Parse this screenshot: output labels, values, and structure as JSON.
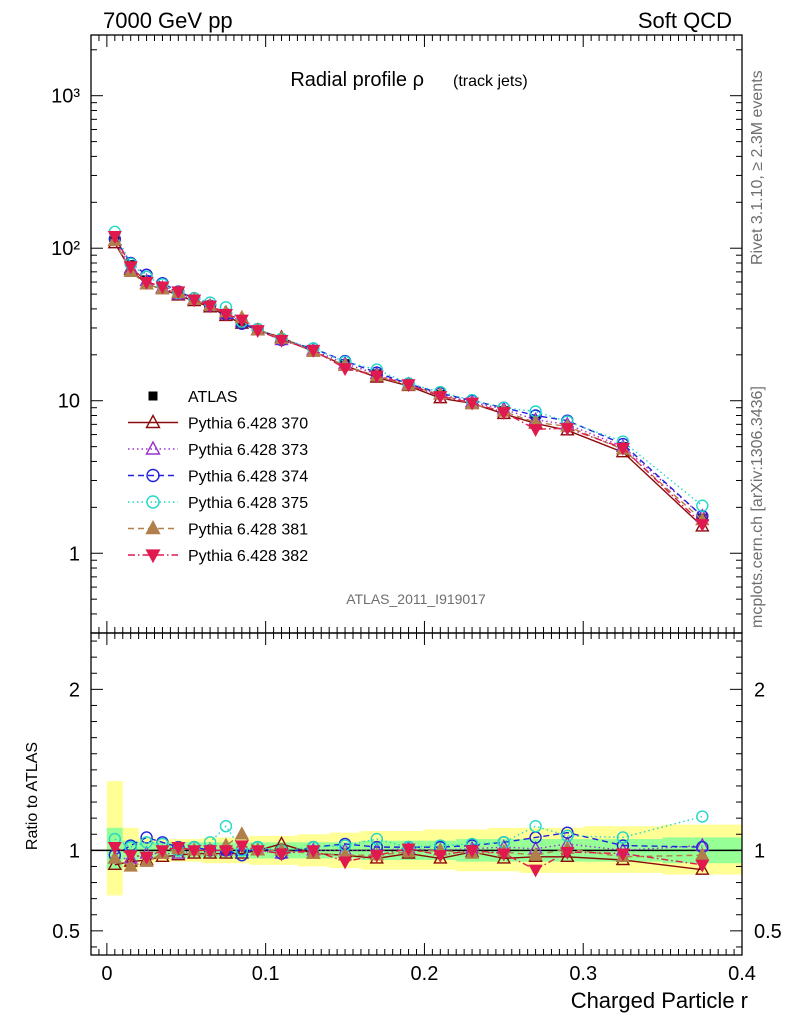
{
  "header": {
    "left": "7000 GeV pp",
    "right": "Soft QCD"
  },
  "side_labels": {
    "rivet": "Rivet 3.1.10, ≥ 2.3M events",
    "mcplots": "mcplots.cern.ch [arXiv:1306.3436]"
  },
  "chart_data": [
    {
      "type": "line",
      "title": "Radial profile ρ",
      "title_suffix": "(track jets)",
      "watermark": "ATLAS_2011_I919017",
      "yscale": "log",
      "xlim": [
        -0.01,
        0.4
      ],
      "ylim": [
        0.3,
        2500
      ],
      "y_tick_labels": [
        "10³",
        "10²",
        "10",
        "1"
      ],
      "x": [
        0.005,
        0.015,
        0.025,
        0.035,
        0.045,
        0.055,
        0.065,
        0.075,
        0.085,
        0.095,
        0.11,
        0.13,
        0.15,
        0.17,
        0.19,
        0.21,
        0.23,
        0.25,
        0.27,
        0.29,
        0.325,
        0.375
      ],
      "legend_position": "middle-left",
      "series": [
        {
          "name": "ATLAS",
          "color": "#000000",
          "marker": "square",
          "dash": "none",
          "values": [
            118,
            78,
            62,
            56,
            51,
            46,
            42,
            37,
            33,
            29,
            25.5,
            21.5,
            17.5,
            15,
            12.7,
            11,
            9.7,
            8.6,
            7.4,
            6.7,
            5.0,
            1.7
          ]
        },
        {
          "name": "Pythia 6.428 370",
          "color": "#8b0a0a",
          "marker": "triangle-open",
          "dash": "solid",
          "values": [
            108,
            72,
            58,
            54,
            49,
            45,
            41,
            36,
            32,
            29,
            26,
            21,
            17,
            14.2,
            12.5,
            10.4,
            9.6,
            8.2,
            7.1,
            6.4,
            4.6,
            1.5
          ]
        },
        {
          "name": "Pythia 6.428 373",
          "color": "#9b30d0",
          "marker": "triangle-open",
          "dash": "dotted",
          "values": [
            112,
            74,
            61,
            55,
            50,
            46,
            42,
            37,
            33,
            29,
            25,
            21.5,
            17.5,
            15,
            12.8,
            11,
            9.8,
            8.8,
            7.5,
            7.0,
            5.0,
            1.75
          ]
        },
        {
          "name": "Pythia 6.428 374",
          "color": "#2222dd",
          "marker": "circle-open",
          "dash": "dashed",
          "values": [
            115,
            80,
            67,
            59,
            52,
            47,
            42,
            37,
            32,
            29.5,
            25,
            22,
            18.2,
            15.3,
            12.9,
            11.2,
            10,
            9.0,
            8.0,
            7.4,
            5.2,
            1.75
          ]
        },
        {
          "name": "Pythia 6.428 375",
          "color": "#20d8c8",
          "marker": "circle-open",
          "dash": "dotted",
          "values": [
            128,
            79,
            65,
            58,
            51,
            47,
            44,
            41,
            33,
            29.5,
            25.5,
            22,
            18,
            16,
            13,
            11.4,
            10.1,
            9.0,
            8.5,
            7.3,
            5.4,
            2.05
          ]
        },
        {
          "name": "Pythia 6.428 381",
          "color": "#b07f4a",
          "marker": "triangle-filled",
          "dash": "dashed",
          "values": [
            112,
            70,
            58,
            54,
            51,
            46,
            42,
            38,
            35,
            29,
            25.5,
            21,
            17,
            14.5,
            12.6,
            11,
            9.5,
            8.5,
            7.2,
            6.8,
            4.8,
            1.65
          ]
        },
        {
          "name": "Pythia 6.428 382",
          "color": "#e0194f",
          "marker": "triangle-down-filled",
          "dash": "dashdot",
          "values": [
            120,
            76,
            60,
            56,
            52,
            46,
            42,
            37,
            34,
            29,
            25,
            21.5,
            16.3,
            14.6,
            12.8,
            10.7,
            9.7,
            8.4,
            6.5,
            6.6,
            4.9,
            1.55
          ]
        }
      ]
    },
    {
      "type": "line",
      "ylabel": "Ratio to ATLAS",
      "xlabel": "Charged Particle r",
      "xlim": [
        -0.01,
        0.4
      ],
      "ylim": [
        0.35,
        2.35
      ],
      "x_tick_labels": [
        "0",
        "0.1",
        "0.2",
        "0.3",
        "0.4"
      ],
      "y_tick_labels": [
        "2",
        "1",
        "0.5"
      ],
      "bands_outer_colour": "#ffff96",
      "bands_inner_colour": "#96ff96",
      "bins": [
        [
          0.0,
          0.01
        ],
        [
          0.01,
          0.02
        ],
        [
          0.02,
          0.03
        ],
        [
          0.03,
          0.04
        ],
        [
          0.04,
          0.05
        ],
        [
          0.05,
          0.06
        ],
        [
          0.06,
          0.07
        ],
        [
          0.07,
          0.08
        ],
        [
          0.08,
          0.09
        ],
        [
          0.09,
          0.1
        ],
        [
          0.1,
          0.12
        ],
        [
          0.12,
          0.14
        ],
        [
          0.14,
          0.16
        ],
        [
          0.16,
          0.18
        ],
        [
          0.18,
          0.2
        ],
        [
          0.2,
          0.22
        ],
        [
          0.22,
          0.24
        ],
        [
          0.24,
          0.26
        ],
        [
          0.26,
          0.28
        ],
        [
          0.28,
          0.3
        ],
        [
          0.3,
          0.35
        ],
        [
          0.35,
          0.4
        ]
      ],
      "band_inner": [
        [
          0.88,
          1.14
        ],
        [
          0.94,
          1.06
        ],
        [
          0.95,
          1.05
        ],
        [
          0.95,
          1.05
        ],
        [
          0.95,
          1.05
        ],
        [
          0.95,
          1.05
        ],
        [
          0.95,
          1.05
        ],
        [
          0.95,
          1.05
        ],
        [
          0.95,
          1.05
        ],
        [
          0.95,
          1.05
        ],
        [
          0.95,
          1.05
        ],
        [
          0.95,
          1.05
        ],
        [
          0.95,
          1.05
        ],
        [
          0.94,
          1.06
        ],
        [
          0.94,
          1.06
        ],
        [
          0.94,
          1.06
        ],
        [
          0.93,
          1.07
        ],
        [
          0.93,
          1.07
        ],
        [
          0.93,
          1.07
        ],
        [
          0.93,
          1.07
        ],
        [
          0.93,
          1.07
        ],
        [
          0.92,
          1.08
        ]
      ],
      "band_outer": [
        [
          0.72,
          1.43
        ],
        [
          0.88,
          1.14
        ],
        [
          0.92,
          1.08
        ],
        [
          0.93,
          1.07
        ],
        [
          0.93,
          1.07
        ],
        [
          0.93,
          1.07
        ],
        [
          0.92,
          1.08
        ],
        [
          0.92,
          1.08
        ],
        [
          0.92,
          1.08
        ],
        [
          0.91,
          1.09
        ],
        [
          0.91,
          1.09
        ],
        [
          0.9,
          1.1
        ],
        [
          0.89,
          1.11
        ],
        [
          0.88,
          1.12
        ],
        [
          0.88,
          1.12
        ],
        [
          0.88,
          1.13
        ],
        [
          0.87,
          1.13
        ],
        [
          0.87,
          1.14
        ],
        [
          0.86,
          1.14
        ],
        [
          0.86,
          1.14
        ],
        [
          0.86,
          1.15
        ],
        [
          0.85,
          1.16
        ]
      ],
      "series": [
        {
          "name": "Pythia 6.428 370",
          "values": [
            0.91,
            0.93,
            0.94,
            0.96,
            0.97,
            0.98,
            0.98,
            0.98,
            0.98,
            1.0,
            1.04,
            0.98,
            0.97,
            0.95,
            0.98,
            0.95,
            0.99,
            0.95,
            0.96,
            0.96,
            0.94,
            0.88
          ]
        },
        {
          "name": "Pythia 6.428 373",
          "values": [
            0.95,
            0.95,
            0.98,
            0.98,
            0.98,
            1.0,
            1.0,
            1.0,
            1.0,
            1.0,
            0.98,
            1.0,
            1.0,
            1.0,
            1.01,
            1.0,
            1.01,
            1.02,
            1.01,
            1.04,
            1.0,
            1.03
          ]
        },
        {
          "name": "Pythia 6.428 374",
          "values": [
            0.97,
            1.03,
            1.08,
            1.05,
            1.02,
            1.02,
            1.0,
            1.0,
            0.97,
            1.02,
            0.98,
            1.02,
            1.04,
            1.02,
            1.02,
            1.02,
            1.03,
            1.05,
            1.08,
            1.11,
            1.03,
            1.02
          ]
        },
        {
          "name": "Pythia 6.428 375",
          "values": [
            1.07,
            1.02,
            1.05,
            1.04,
            1.0,
            1.02,
            1.05,
            1.15,
            1.0,
            1.02,
            1.0,
            1.02,
            1.03,
            1.07,
            1.02,
            1.03,
            1.04,
            1.05,
            1.15,
            1.09,
            1.08,
            1.21
          ]
        },
        {
          "name": "Pythia 6.428 381",
          "values": [
            0.95,
            0.9,
            0.93,
            0.98,
            1.01,
            1.0,
            1.0,
            1.03,
            1.1,
            1.0,
            1.0,
            0.98,
            0.97,
            0.97,
            0.99,
            1.0,
            0.98,
            0.99,
            0.97,
            1.01,
            0.96,
            0.97
          ]
        },
        {
          "name": "Pythia 6.428 382",
          "values": [
            1.02,
            0.97,
            0.96,
            1.0,
            1.02,
            1.0,
            1.0,
            1.0,
            1.03,
            1.0,
            0.98,
            1.0,
            0.93,
            0.97,
            1.01,
            0.97,
            1.0,
            0.98,
            0.88,
            0.99,
            0.98,
            0.91
          ]
        }
      ]
    }
  ]
}
